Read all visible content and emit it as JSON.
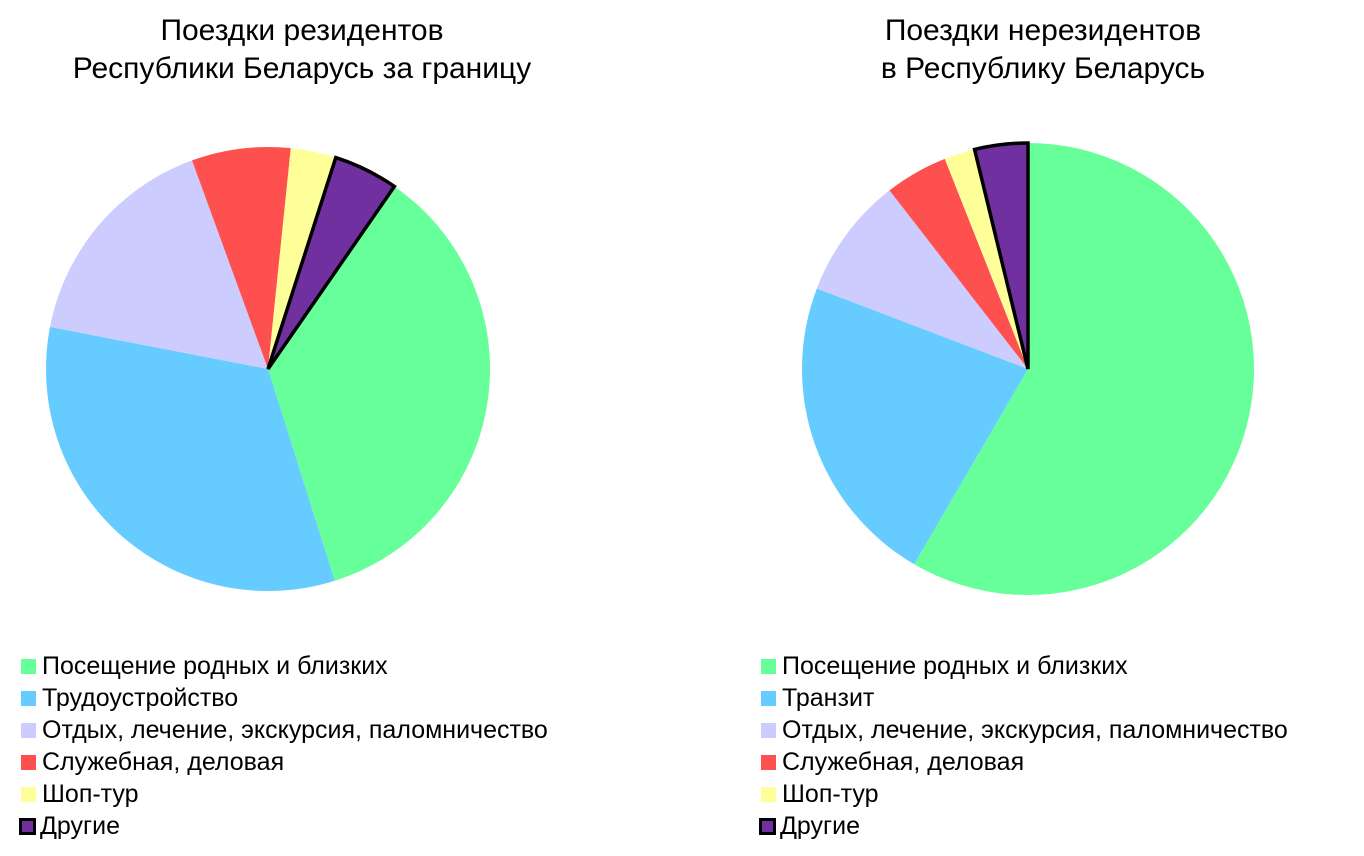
{
  "background_color": "#FFFFFF",
  "chart_data": [
    {
      "type": "pie",
      "side": "left",
      "title": "Поездки резидентов Республики Беларусь за границу",
      "title_lines": [
        "Поездки резидентов",
        "Республики Беларусь за границу"
      ],
      "labels": [
        "Посещение родных и близких",
        "Трудоустройство",
        "Отдых, лечение, экскурсия, паломничество",
        "Служебная, деловая",
        "Шоп-тур",
        "Другие"
      ],
      "values_pct": [
        35.5,
        32.9,
        16.4,
        7.2,
        3.3,
        4.7
      ],
      "colors": [
        "#66FF99",
        "#66CCFF",
        "#CCCCFF",
        "#FF5050",
        "#FFFF99",
        "#7030A0"
      ],
      "start_angle_deg": 34.7,
      "direction": "clockwise",
      "legend_position": "bottom-left",
      "highlight": {
        "label": "Другие",
        "outline_color": "#000000",
        "outline_width": 3.5
      }
    },
    {
      "type": "pie",
      "side": "right",
      "title": "Поездки нерезидентов в Республику Беларусь",
      "title_lines": [
        "Поездки нерезидентов",
        "в Республику Беларусь"
      ],
      "labels": [
        "Посещение родных и близких",
        "Транзит",
        "Отдых, лечение, экскурсия, паломничество",
        "Служебная, деловая",
        "Шоп-тур",
        "Другие"
      ],
      "values_pct": [
        58.4,
        22.4,
        8.7,
        4.5,
        2.2,
        3.8
      ],
      "colors": [
        "#66FF99",
        "#66CCFF",
        "#CCCCFF",
        "#FF5050",
        "#FFFF99",
        "#7030A0"
      ],
      "start_angle_deg": 0,
      "direction": "clockwise",
      "legend_position": "bottom-left",
      "highlight": {
        "label": "Другие",
        "outline_color": "#000000",
        "outline_width": 3.5
      }
    }
  ]
}
